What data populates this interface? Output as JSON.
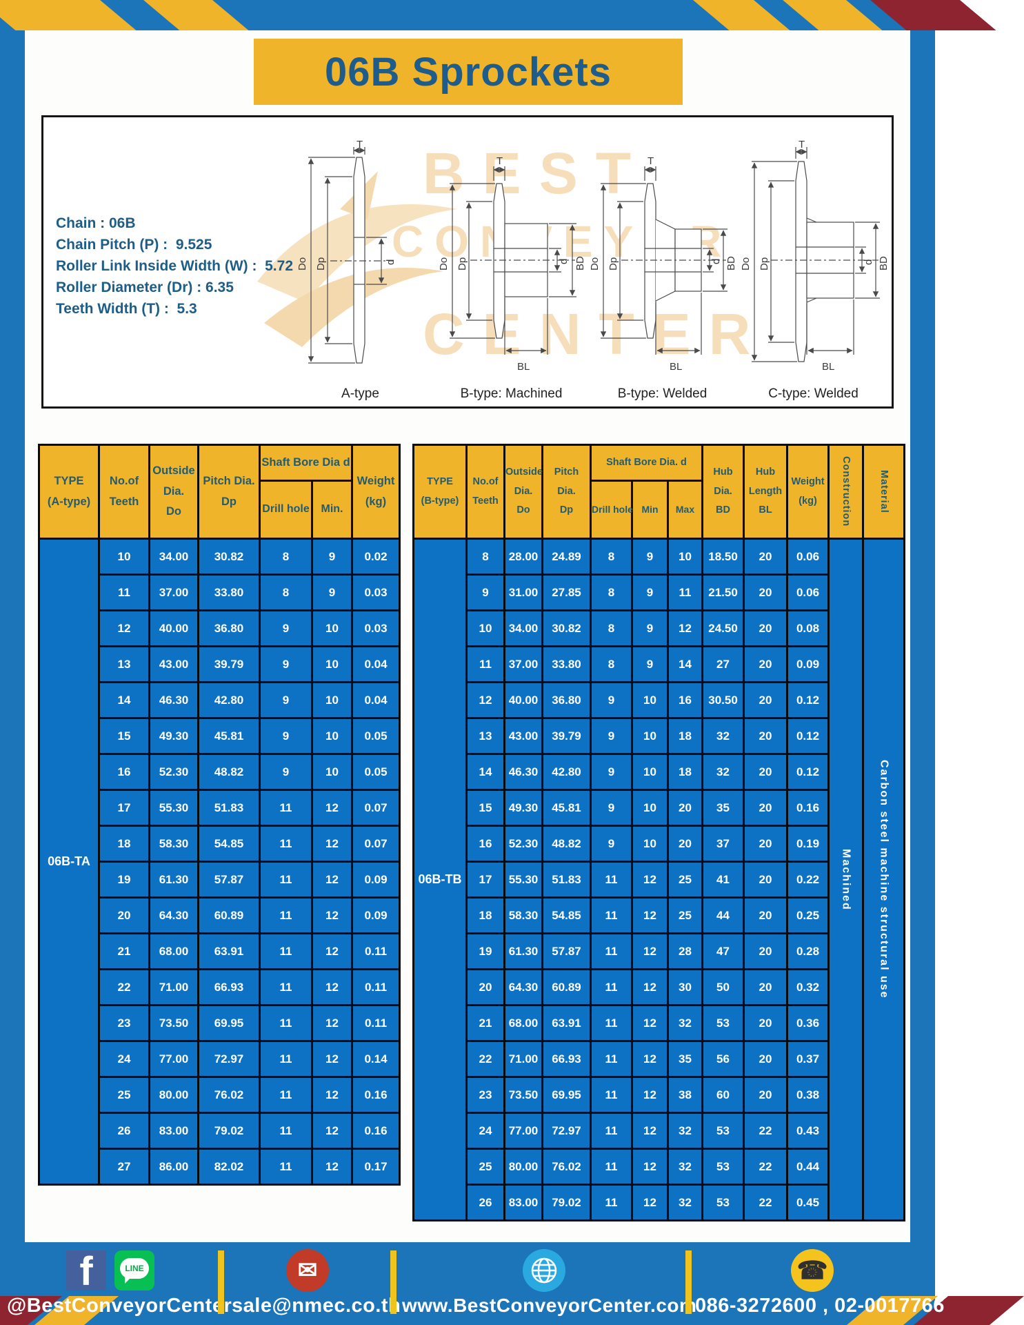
{
  "title": "06B Sprockets",
  "colors": {
    "frame": "#1c74b9",
    "gold": "#f0b42a",
    "maroon": "#8e2430",
    "title_text": "#1e5c8c",
    "spec_text": "#1d5d87",
    "header_text": "#235c72",
    "cell_blue": "#0e72c4",
    "divider_yellow": "#f0c41f"
  },
  "specs": [
    "Chain : 06B",
    "Chain Pitch (P) :  9.525",
    "Roller Link Inside Width (W) :  5.72",
    "Roller Diameter (Dr) : 6.35",
    "Teeth Width (T) :  5.3"
  ],
  "watermark": {
    "line1": "BEST",
    "line2": "CONVEYOR",
    "line3": "CENTER"
  },
  "diagrams": {
    "dims": {
      "t": "T",
      "do": "Do",
      "dp": "Dp",
      "d": "d",
      "bd": "BD",
      "bl": "BL"
    },
    "captions": [
      "A-type",
      "B-type: Machined",
      "B-type: Welded",
      "C-type: Welded"
    ]
  },
  "tables": {
    "a": {
      "type_label": "06B-TA",
      "header": {
        "type": "TYPE\n(A-type)",
        "teeth": "No.of\nTeeth",
        "outside": "Outside\nDia.\nDo",
        "pitch": "Pitch Dia.\nDp",
        "bore_group": "Shaft Bore Dia d",
        "drill": "Drill hole",
        "min": "Min.",
        "weight": "Weight\n(kg)"
      },
      "rows": [
        [
          "10",
          "34.00",
          "30.82",
          "8",
          "9",
          "0.02"
        ],
        [
          "11",
          "37.00",
          "33.80",
          "8",
          "9",
          "0.03"
        ],
        [
          "12",
          "40.00",
          "36.80",
          "9",
          "10",
          "0.03"
        ],
        [
          "13",
          "43.00",
          "39.79",
          "9",
          "10",
          "0.04"
        ],
        [
          "14",
          "46.30",
          "42.80",
          "9",
          "10",
          "0.04"
        ],
        [
          "15",
          "49.30",
          "45.81",
          "9",
          "10",
          "0.05"
        ],
        [
          "16",
          "52.30",
          "48.82",
          "9",
          "10",
          "0.05"
        ],
        [
          "17",
          "55.30",
          "51.83",
          "11",
          "12",
          "0.07"
        ],
        [
          "18",
          "58.30",
          "54.85",
          "11",
          "12",
          "0.07"
        ],
        [
          "19",
          "61.30",
          "57.87",
          "11",
          "12",
          "0.09"
        ],
        [
          "20",
          "64.30",
          "60.89",
          "11",
          "12",
          "0.09"
        ],
        [
          "21",
          "68.00",
          "63.91",
          "11",
          "12",
          "0.11"
        ],
        [
          "22",
          "71.00",
          "66.93",
          "11",
          "12",
          "0.11"
        ],
        [
          "23",
          "73.50",
          "69.95",
          "11",
          "12",
          "0.11"
        ],
        [
          "24",
          "77.00",
          "72.97",
          "11",
          "12",
          "0.14"
        ],
        [
          "25",
          "80.00",
          "76.02",
          "11",
          "12",
          "0.16"
        ],
        [
          "26",
          "83.00",
          "79.02",
          "11",
          "12",
          "0.16"
        ],
        [
          "27",
          "86.00",
          "82.02",
          "11",
          "12",
          "0.17"
        ]
      ]
    },
    "b": {
      "type_label": "06B-TB",
      "header": {
        "type": "TYPE\n(B-type)",
        "teeth": "No.of\nTeeth",
        "outside": "Outside\nDia.\nDo",
        "pitch": "Pitch\nDia.\nDp",
        "bore_group": "Shaft Bore Dia.  d",
        "drill": "Drill hole",
        "min": "Min",
        "max": "Max",
        "hub_dia": "Hub\nDia.\nBD",
        "hub_len": "Hub\nLength\nBL",
        "weight": "Weight\n(kg)",
        "construction": "Construction",
        "material": "Material"
      },
      "rows": [
        [
          "8",
          "28.00",
          "24.89",
          "8",
          "9",
          "10",
          "18.50",
          "20",
          "0.06"
        ],
        [
          "9",
          "31.00",
          "27.85",
          "8",
          "9",
          "11",
          "21.50",
          "20",
          "0.06"
        ],
        [
          "10",
          "34.00",
          "30.82",
          "8",
          "9",
          "12",
          "24.50",
          "20",
          "0.08"
        ],
        [
          "11",
          "37.00",
          "33.80",
          "8",
          "9",
          "14",
          "27",
          "20",
          "0.09"
        ],
        [
          "12",
          "40.00",
          "36.80",
          "9",
          "10",
          "16",
          "30.50",
          "20",
          "0.12"
        ],
        [
          "13",
          "43.00",
          "39.79",
          "9",
          "10",
          "18",
          "32",
          "20",
          "0.12"
        ],
        [
          "14",
          "46.30",
          "42.80",
          "9",
          "10",
          "18",
          "32",
          "20",
          "0.12"
        ],
        [
          "15",
          "49.30",
          "45.81",
          "9",
          "10",
          "20",
          "35",
          "20",
          "0.16"
        ],
        [
          "16",
          "52.30",
          "48.82",
          "9",
          "10",
          "20",
          "37",
          "20",
          "0.19"
        ],
        [
          "17",
          "55.30",
          "51.83",
          "11",
          "12",
          "25",
          "41",
          "20",
          "0.22"
        ],
        [
          "18",
          "58.30",
          "54.85",
          "11",
          "12",
          "25",
          "44",
          "20",
          "0.25"
        ],
        [
          "19",
          "61.30",
          "57.87",
          "11",
          "12",
          "28",
          "47",
          "20",
          "0.28"
        ],
        [
          "20",
          "64.30",
          "60.89",
          "11",
          "12",
          "30",
          "50",
          "20",
          "0.32"
        ],
        [
          "21",
          "68.00",
          "63.91",
          "11",
          "12",
          "32",
          "53",
          "20",
          "0.36"
        ],
        [
          "22",
          "71.00",
          "66.93",
          "11",
          "12",
          "35",
          "56",
          "20",
          "0.37"
        ],
        [
          "23",
          "73.50",
          "69.95",
          "11",
          "12",
          "38",
          "60",
          "20",
          "0.38"
        ],
        [
          "24",
          "77.00",
          "72.97",
          "11",
          "12",
          "32",
          "53",
          "22",
          "0.43"
        ],
        [
          "25",
          "80.00",
          "76.02",
          "11",
          "12",
          "32",
          "53",
          "22",
          "0.44"
        ],
        [
          "26",
          "83.00",
          "79.02",
          "11",
          "12",
          "32",
          "53",
          "22",
          "0.45"
        ]
      ],
      "construction_value": "Machined",
      "material_value": "Carbon  steel  machine  structural  use"
    }
  },
  "footer": {
    "social_label": "@BestConveyorCenter",
    "email": "sale@nmec.co.th",
    "website": "www.BestConveyorCenter.com",
    "phones": "086-3272600 , 02-0017766",
    "line_icon_text": "LINE",
    "facebook_letter": "f",
    "mail_glyph": "✉",
    "phone_glyph": "☎"
  }
}
